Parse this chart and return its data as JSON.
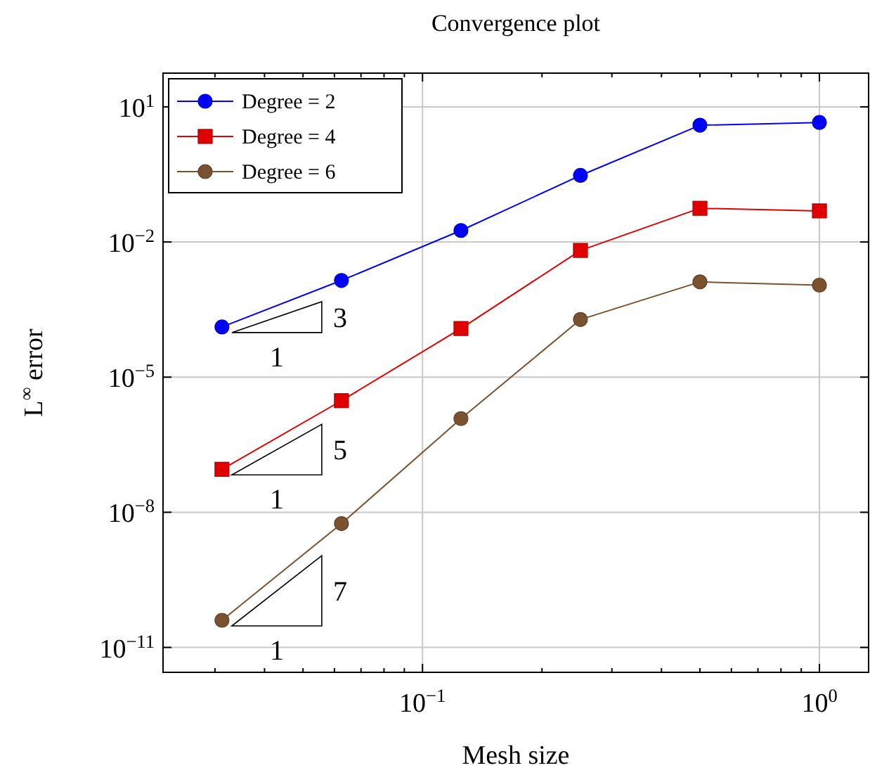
{
  "chart_data": {
    "type": "line",
    "title": "Convergence plot",
    "xlabel": "Mesh size",
    "ylabel": "L$^{∞}$ error",
    "x": [
      0.03125,
      0.0625,
      0.125,
      0.25,
      0.5,
      1
    ],
    "series": [
      {
        "name": "Degree = 2",
        "color": "#0000ff",
        "marker": "circle",
        "values": [
          0.00013,
          0.0014,
          0.018,
          0.3,
          3.9,
          4.5
        ]
      },
      {
        "name": "Degree = 4",
        "color": "#e00000",
        "marker": "square",
        "values": [
          9e-08,
          3e-06,
          0.00012,
          0.0065,
          0.056,
          0.049
        ]
      },
      {
        "name": "Degree = 6",
        "color": "#7a5230",
        "marker": "circle",
        "values": [
          4e-11,
          5.6e-09,
          1.2e-06,
          0.00019,
          0.0013,
          0.0011
        ]
      }
    ],
    "log": "xy",
    "xlim": [
      0.0222,
      1.33
    ],
    "ylim": [
      2.8e-12,
      56
    ],
    "xticks": [
      {
        "value": 0.03,
        "label": null
      },
      {
        "value": 0.04,
        "label": null
      },
      {
        "value": 0.05,
        "label": null
      },
      {
        "value": 0.06,
        "label": null
      },
      {
        "value": 0.07,
        "label": null
      },
      {
        "value": 0.08,
        "label": null
      },
      {
        "value": 0.09,
        "label": null
      },
      {
        "value": 0.1,
        "label": "10$^{−1}$"
      },
      {
        "value": 0.2,
        "label": null
      },
      {
        "value": 0.3,
        "label": null
      },
      {
        "value": 0.4,
        "label": null
      },
      {
        "value": 0.5,
        "label": null
      },
      {
        "value": 0.6,
        "label": null
      },
      {
        "value": 0.7,
        "label": null
      },
      {
        "value": 0.8,
        "label": null
      },
      {
        "value": 0.9,
        "label": null
      },
      {
        "value": 1,
        "label": "10$^{0}$"
      }
    ],
    "yticks": [
      {
        "value": 1e-11,
        "label": "10$^{−11}$"
      },
      {
        "value": 1e-08,
        "label": "10$^{−8}$"
      },
      {
        "value": 1e-05,
        "label": "10$^{−5}$"
      },
      {
        "value": 0.01,
        "label": "10$^{−2}$"
      },
      {
        "value": 10,
        "label": "10$^{1}$"
      }
    ],
    "grid": true,
    "legend": "top left",
    "line_style": "solid",
    "annotations": [
      "3",
      "1",
      "5",
      "1",
      "7",
      "1"
    ]
  }
}
